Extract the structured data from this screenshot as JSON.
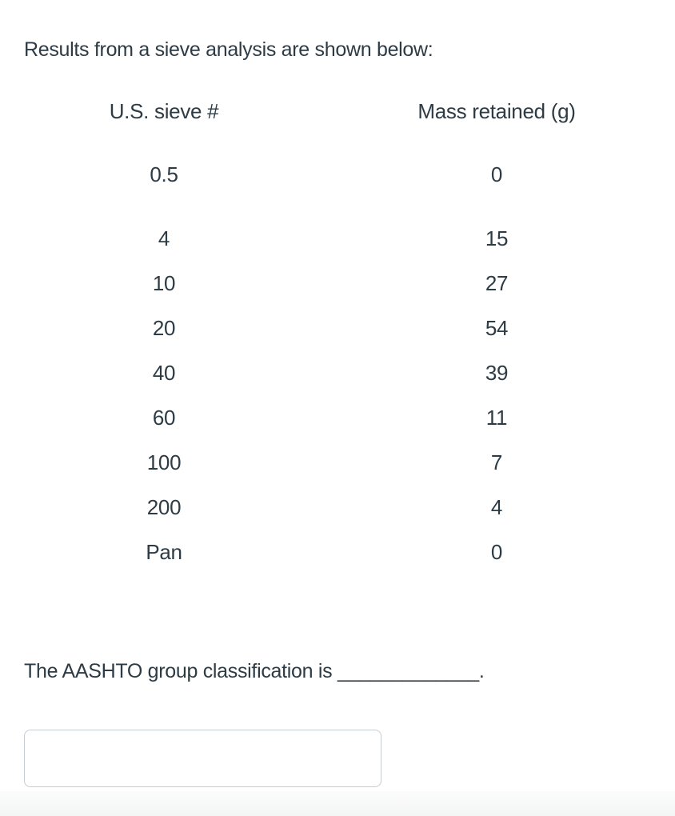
{
  "question": {
    "intro": "Results from a sieve analysis are shown below:",
    "table": {
      "col1_header": "U.S. sieve #",
      "col2_header": "Mass retained (g)",
      "rows": [
        {
          "sieve": "0.5",
          "mass": "0"
        },
        {
          "sieve": "4",
          "mass": "15"
        },
        {
          "sieve": "10",
          "mass": "27"
        },
        {
          "sieve": "20",
          "mass": "54"
        },
        {
          "sieve": "40",
          "mass": "39"
        },
        {
          "sieve": "60",
          "mass": "11"
        },
        {
          "sieve": "100",
          "mass": "7"
        },
        {
          "sieve": "200",
          "mass": "4"
        },
        {
          "sieve": "Pan",
          "mass": "0"
        }
      ]
    },
    "prompt": "The AASHTO group classification is",
    "blank": "_____________",
    "suffix": ".",
    "answer": {
      "value": "",
      "placeholder": ""
    }
  },
  "colors": {
    "text": "#2d3b45",
    "input_border": "#c6ccd0",
    "footer_band": "#f4f5f5"
  }
}
